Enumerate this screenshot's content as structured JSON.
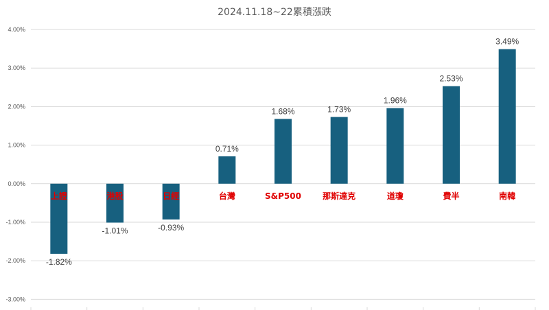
{
  "chart_data": {
    "type": "bar",
    "title": "2024.11.18~22累積漲跌",
    "categories": [
      "上證",
      "港股",
      "日經",
      "台灣",
      "S&P500",
      "那斯達克",
      "道瓊",
      "費半",
      "南韓"
    ],
    "values": [
      -1.82,
      -1.01,
      -0.93,
      0.71,
      1.68,
      1.73,
      1.96,
      2.53,
      3.49
    ],
    "value_labels": [
      "-1.82%",
      "-1.01%",
      "-0.93%",
      "0.71%",
      "1.68%",
      "1.73%",
      "1.96%",
      "2.53%",
      "3.49%"
    ],
    "y_ticks": [
      4,
      3,
      2,
      1,
      0,
      -1,
      -2,
      -3
    ],
    "y_tick_labels": [
      "4.00%",
      "3.00%",
      "2.00%",
      "1.00%",
      "0.00%",
      "-1.00%",
      "-2.00%",
      "-3.00%"
    ],
    "ylim": [
      -3,
      4
    ],
    "xlabel": "",
    "ylabel": "",
    "grid": true,
    "bar_color": "#17607f",
    "category_label_color": "#e00000"
  }
}
